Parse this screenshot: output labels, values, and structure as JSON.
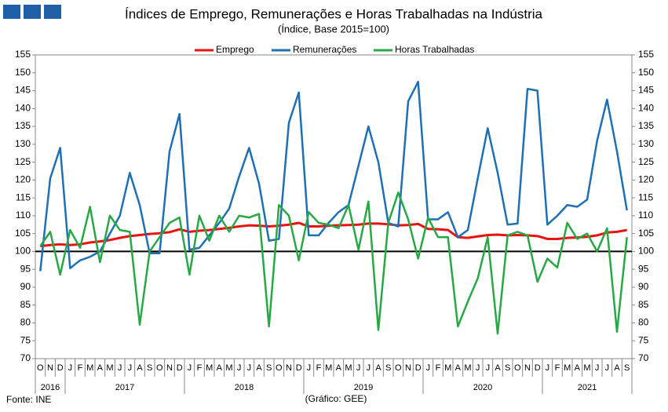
{
  "chart_data": {
    "type": "line",
    "title": "Índices de Emprego, Remunerações e Horas Trabalhadas na Indústria",
    "subtitle": "(Índice, Base 2015=100)",
    "source": "Fonte: INE",
    "credit": "(Gráfico: GEE)",
    "categories": [
      "O",
      "N",
      "D",
      "J",
      "F",
      "M",
      "A",
      "M",
      "J",
      "J",
      "A",
      "S",
      "O",
      "N",
      "D",
      "J",
      "F",
      "M",
      "A",
      "M",
      "J",
      "J",
      "A",
      "S",
      "O",
      "N",
      "D",
      "J",
      "F",
      "M",
      "A",
      "M",
      "J",
      "J",
      "A",
      "S",
      "O",
      "N",
      "D",
      "J",
      "F",
      "M",
      "A",
      "M",
      "J",
      "J",
      "A",
      "S",
      "O",
      "N",
      "D",
      "J",
      "F",
      "M",
      "A",
      "M",
      "J",
      "J",
      "A",
      "S"
    ],
    "groups": [
      {
        "label": "2016",
        "size": 3
      },
      {
        "label": "2017",
        "size": 12
      },
      {
        "label": "2018",
        "size": 12
      },
      {
        "label": "2019",
        "size": 12
      },
      {
        "label": "2020",
        "size": 12
      },
      {
        "label": "2021",
        "size": 9
      }
    ],
    "series": [
      {
        "name": "Emprego",
        "color": "#e8130f",
        "width": 3,
        "values": [
          101.5,
          101.8,
          102,
          101.8,
          102,
          102.5,
          102.8,
          103.2,
          103.8,
          104.3,
          104.6,
          104.9,
          105.1,
          105.4,
          106.2,
          105.5,
          105.8,
          106,
          106.3,
          106.6,
          107,
          107.3,
          107.2,
          107,
          107.2,
          107.5,
          108,
          107,
          107,
          107.2,
          107.3,
          107.4,
          107.5,
          107.8,
          107.8,
          107.6,
          107.3,
          107.4,
          107.7,
          106.3,
          106.2,
          106,
          104,
          103.8,
          104.2,
          104.6,
          104.7,
          104.5,
          104.6,
          104.5,
          104.3,
          103.5,
          103.5,
          103.8,
          103.9,
          104.1,
          104.5,
          105.3,
          105.5,
          106
        ]
      },
      {
        "name": "Remunerações",
        "color": "#1f6fb5",
        "width": 2.5,
        "values": [
          94.5,
          120.5,
          129,
          95.3,
          97.5,
          98.5,
          100,
          105,
          110,
          122,
          113,
          99.5,
          99.5,
          128,
          138.5,
          100.5,
          101,
          104.5,
          108,
          112,
          121,
          129,
          119,
          103,
          103.5,
          136,
          144.5,
          104.5,
          104.5,
          108,
          111,
          113,
          124,
          135,
          125,
          108,
          107,
          142,
          147.5,
          109,
          109,
          111,
          104,
          106,
          120.5,
          134.5,
          122,
          107.5,
          107.8,
          145.5,
          145,
          107.5,
          110,
          113,
          112.5,
          114.5,
          131,
          142.5,
          128,
          111.5
        ]
      },
      {
        "name": "Horas Trabalhadas",
        "color": "#27a844",
        "width": 2.5,
        "values": [
          101.5,
          105.5,
          93.5,
          106,
          101,
          112.5,
          97,
          110,
          106,
          105.5,
          79.5,
          100,
          104,
          108,
          109.5,
          93.5,
          110,
          103,
          110,
          105.5,
          110,
          109.5,
          110.5,
          79,
          113,
          110,
          97.5,
          111,
          108,
          107.5,
          106.5,
          113,
          100.5,
          114,
          78,
          108,
          116.5,
          109,
          98,
          109.5,
          104,
          104,
          79,
          86,
          92.5,
          104,
          77,
          104.5,
          105.5,
          104.5,
          91.5,
          98,
          95.5,
          108,
          103.5,
          105,
          100,
          106.5,
          77.5,
          104
        ]
      }
    ],
    "reference_line": 100,
    "ylim": [
      70,
      155
    ],
    "yticks": [
      70,
      75,
      80,
      85,
      90,
      95,
      100,
      105,
      110,
      115,
      120,
      125,
      130,
      135,
      140,
      145,
      150,
      155
    ],
    "y2lim": [
      70,
      155
    ],
    "y2ticks": [
      70,
      75,
      80,
      85,
      90,
      95,
      100,
      105,
      110,
      115,
      120,
      125,
      130,
      135,
      140,
      145,
      150,
      155
    ]
  }
}
